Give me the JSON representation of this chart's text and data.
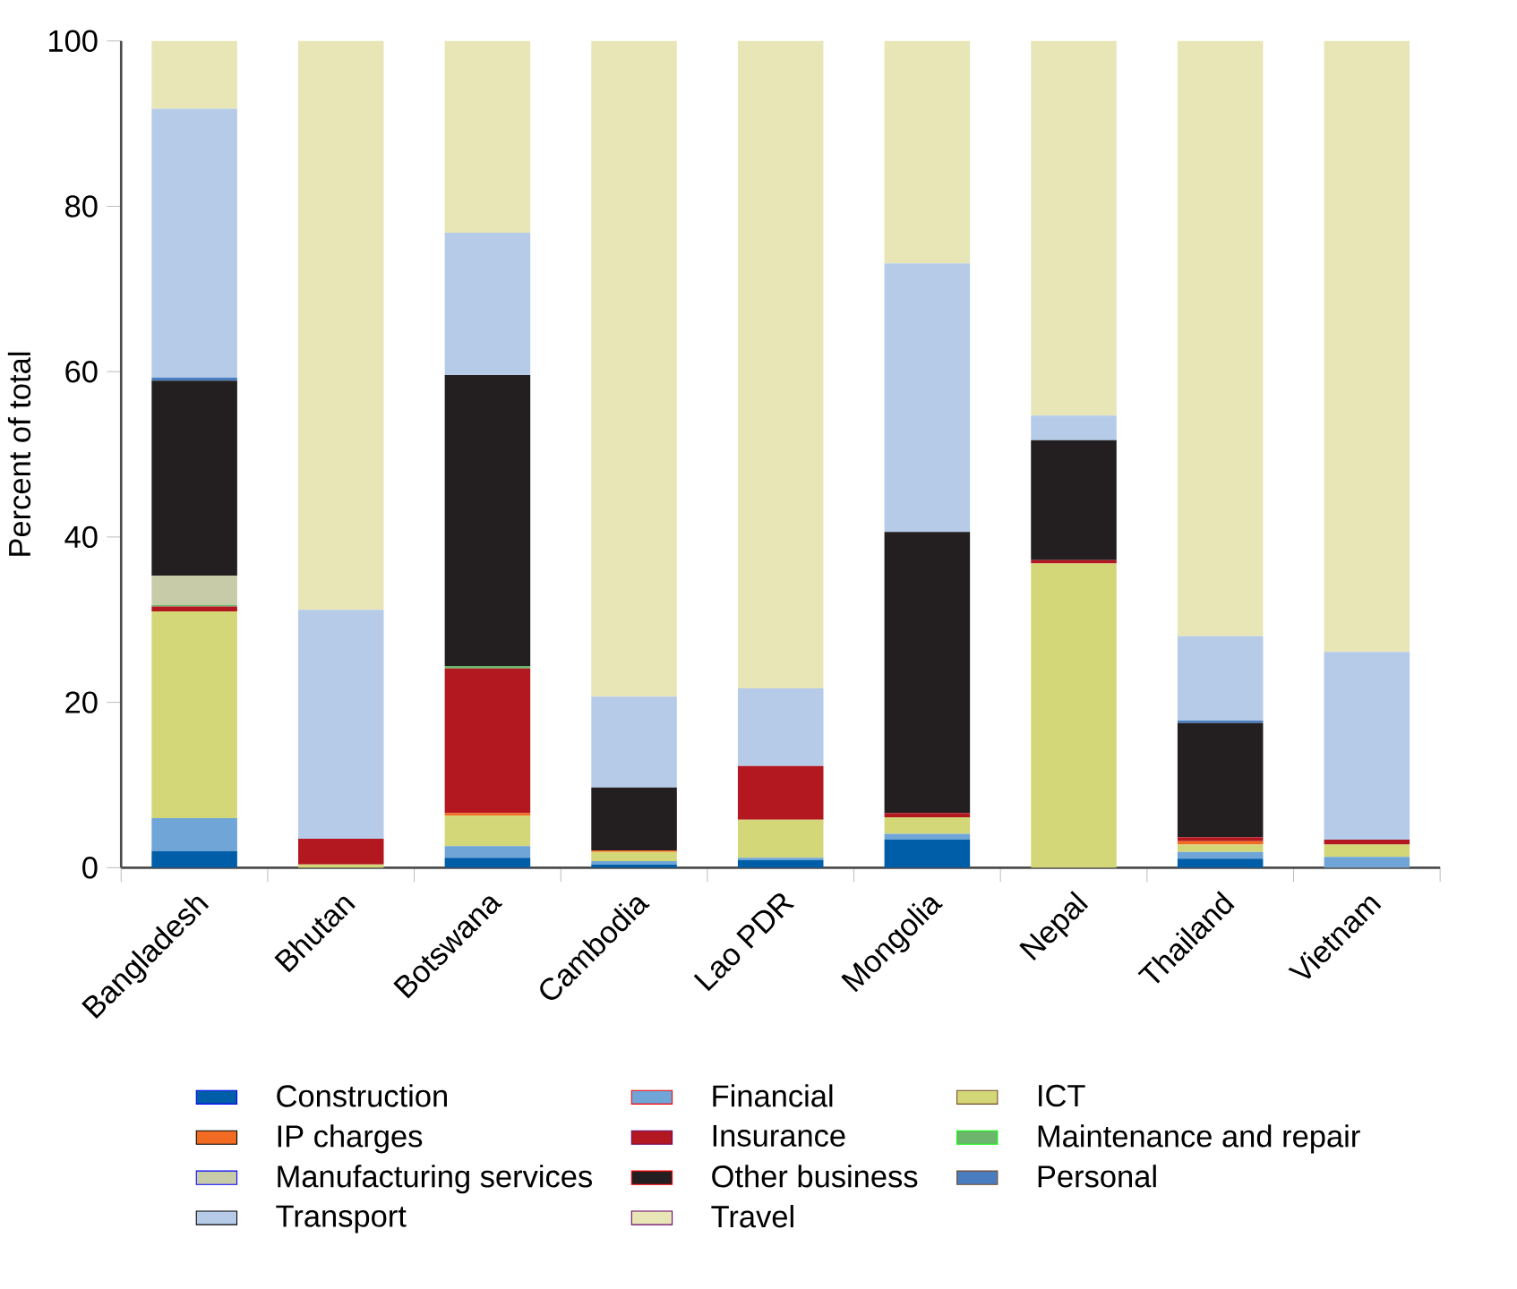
{
  "chart_data": {
    "type": "bar",
    "stacked": true,
    "ylabel": "Percent of total",
    "categories": [
      "Bangladesh",
      "Bhutan",
      "Botswana",
      "Cambodia",
      "Lao PDR",
      "Mongolia",
      "Nepal",
      "Thailand",
      "Vietnam"
    ],
    "ylim": [
      0,
      100
    ],
    "yticks": [
      0,
      20,
      40,
      60,
      80,
      100
    ],
    "legend": "bottom",
    "series": [
      {
        "name": "Construction",
        "color": "#005ea8",
        "values": [
          2,
          0,
          1.2,
          0.4,
          0.9,
          3.4,
          0,
          1.1,
          0
        ]
      },
      {
        "name": "Financial",
        "color": "#6fa5d7",
        "values": [
          4,
          0,
          1.4,
          0.4,
          0.3,
          0.7,
          0,
          0.8,
          1.3
        ]
      },
      {
        "name": "ICT",
        "color": "#d4d777",
        "values": [
          25,
          0.4,
          3.7,
          1.1,
          4.6,
          2,
          36.8,
          0.9,
          1.5
        ]
      },
      {
        "name": "IP charges",
        "color": "#f26b22",
        "values": [
          0,
          0,
          0.3,
          0.2,
          0,
          0,
          0,
          0.4,
          0
        ]
      },
      {
        "name": "Insurance",
        "color": "#b31820",
        "values": [
          0.6,
          3.1,
          17.5,
          0,
          6.5,
          0.5,
          0.4,
          0.5,
          0.6
        ]
      },
      {
        "name": "Maintenance and repair",
        "color": "#6db56d",
        "values": [
          0.2,
          0,
          0.3,
          0,
          0,
          0,
          0,
          0,
          0
        ]
      },
      {
        "name": "Manufacturing services",
        "color": "#c8cba8",
        "values": [
          3.5,
          0,
          0,
          0,
          0,
          0,
          0,
          0,
          0
        ]
      },
      {
        "name": "Other business",
        "color": "#231f20",
        "values": [
          23.6,
          0,
          35.2,
          7.6,
          0,
          34,
          14.5,
          13.8,
          0
        ]
      },
      {
        "name": "Personal",
        "color": "#4a7dbf",
        "values": [
          0.4,
          0,
          0,
          0,
          0,
          0,
          0,
          0.3,
          0
        ]
      },
      {
        "name": "Transport",
        "color": "#b5cbe8",
        "values": [
          32.5,
          27.7,
          17.2,
          11,
          9.4,
          32.5,
          3,
          10.2,
          22.7
        ]
      },
      {
        "name": "Travel",
        "color": "#e8e6b7",
        "values": [
          8.2,
          68.8,
          23.2,
          79.3,
          78.3,
          26.9,
          45.3,
          72,
          73.9
        ]
      }
    ]
  }
}
